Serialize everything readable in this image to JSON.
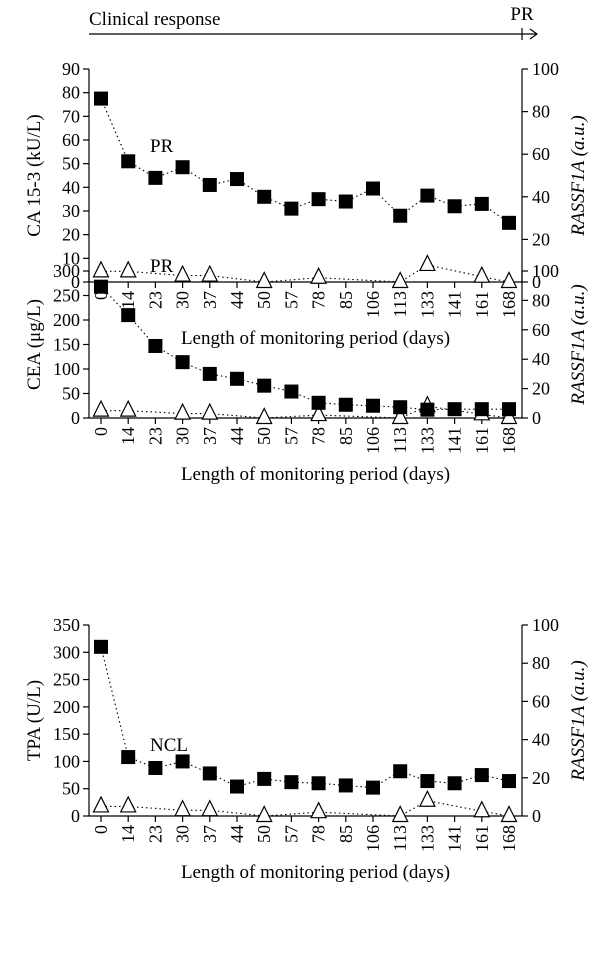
{
  "header": {
    "clinical_response_label": "Clinical response",
    "end_label": "PR"
  },
  "chart_data": [
    {
      "type": "line",
      "ylabel": "CA 15-3 (kU/L)",
      "y2label": "RASSF1A (a.u.)",
      "xlabel": "Length of monitoring period (days)",
      "x_ticks": [
        "0",
        "14",
        "23",
        "30",
        "37",
        "44",
        "50",
        "57",
        "78",
        "85",
        "106",
        "113",
        "133",
        "141",
        "161",
        "168"
      ],
      "ylim": [
        0,
        90
      ],
      "yticks": [
        0,
        10,
        20,
        30,
        40,
        50,
        60,
        70,
        80,
        90
      ],
      "y2lim": [
        0,
        100
      ],
      "y2ticks": [
        0,
        20,
        40,
        60,
        80,
        100
      ],
      "annotation": "PR",
      "series": [
        {
          "axis": "left",
          "marker": "filled-square",
          "values": [
            77.5,
            51,
            44,
            48.5,
            41,
            43.5,
            36,
            31,
            35,
            34,
            39.5,
            28,
            36.5,
            32,
            33,
            25
          ]
        },
        {
          "axis": "right",
          "marker": "open-triangle",
          "points": [
            {
              "x": "0",
              "y": 5
            },
            {
              "x": "14",
              "y": 5
            },
            {
              "x": "30",
              "y": 3
            },
            {
              "x": "37",
              "y": 3
            },
            {
              "x": "50",
              "y": 0
            },
            {
              "x": "78",
              "y": 2
            },
            {
              "x": "113",
              "y": 0
            },
            {
              "x": "133",
              "y": 8
            },
            {
              "x": "161",
              "y": 2.5
            },
            {
              "x": "168",
              "y": 0
            }
          ]
        }
      ]
    },
    {
      "type": "line",
      "ylabel": "CEA (μg/L)",
      "y2label": "RASSF1A (a.u.)",
      "xlabel": "Length of monitoring period (days)",
      "x_ticks": [
        "0",
        "14",
        "23",
        "30",
        "37",
        "44",
        "50",
        "57",
        "78",
        "85",
        "106",
        "113",
        "133",
        "141",
        "161",
        "168"
      ],
      "ylim": [
        0,
        300
      ],
      "yticks": [
        0,
        50,
        100,
        150,
        200,
        250,
        300
      ],
      "y2lim": [
        0,
        100
      ],
      "y2ticks": [
        0,
        20,
        40,
        60,
        80,
        100
      ],
      "annotation": "PR",
      "series": [
        {
          "axis": "left",
          "marker": "filled-square",
          "values": [
            268,
            210,
            147,
            114,
            90,
            80,
            66,
            54,
            31,
            27,
            25,
            22,
            17,
            18,
            18,
            18
          ]
        },
        {
          "axis": "right",
          "marker": "open-triangle",
          "points": [
            {
              "x": "0",
              "y": 5
            },
            {
              "x": "14",
              "y": 5
            },
            {
              "x": "30",
              "y": 3
            },
            {
              "x": "37",
              "y": 3
            },
            {
              "x": "50",
              "y": 0
            },
            {
              "x": "78",
              "y": 2
            },
            {
              "x": "113",
              "y": 0
            },
            {
              "x": "133",
              "y": 8
            },
            {
              "x": "161",
              "y": 2.5
            },
            {
              "x": "168",
              "y": 0
            }
          ]
        }
      ]
    },
    {
      "type": "line",
      "ylabel": "TPA (U/L)",
      "y2label": "RASSF1A (a.u.)",
      "xlabel": "Length of monitoring period (days)",
      "x_ticks": [
        "0",
        "14",
        "23",
        "30",
        "37",
        "44",
        "50",
        "57",
        "78",
        "85",
        "106",
        "113",
        "133",
        "141",
        "161",
        "168"
      ],
      "ylim": [
        0,
        350
      ],
      "yticks": [
        0,
        50,
        100,
        150,
        200,
        250,
        300,
        350
      ],
      "y2lim": [
        0,
        100
      ],
      "y2ticks": [
        0,
        20,
        40,
        60,
        80,
        100
      ],
      "annotation": "NCL",
      "series": [
        {
          "axis": "left",
          "marker": "filled-square",
          "values": [
            310,
            108,
            88,
            100,
            78,
            54,
            68,
            62,
            60,
            56,
            52,
            82,
            64,
            60,
            75,
            64
          ]
        },
        {
          "axis": "right",
          "marker": "open-triangle",
          "points": [
            {
              "x": "0",
              "y": 5
            },
            {
              "x": "14",
              "y": 5
            },
            {
              "x": "30",
              "y": 3
            },
            {
              "x": "37",
              "y": 3
            },
            {
              "x": "50",
              "y": 0
            },
            {
              "x": "78",
              "y": 2
            },
            {
              "x": "113",
              "y": 0
            },
            {
              "x": "133",
              "y": 8
            },
            {
              "x": "161",
              "y": 2.5
            },
            {
              "x": "168",
              "y": 0
            }
          ]
        }
      ]
    }
  ]
}
